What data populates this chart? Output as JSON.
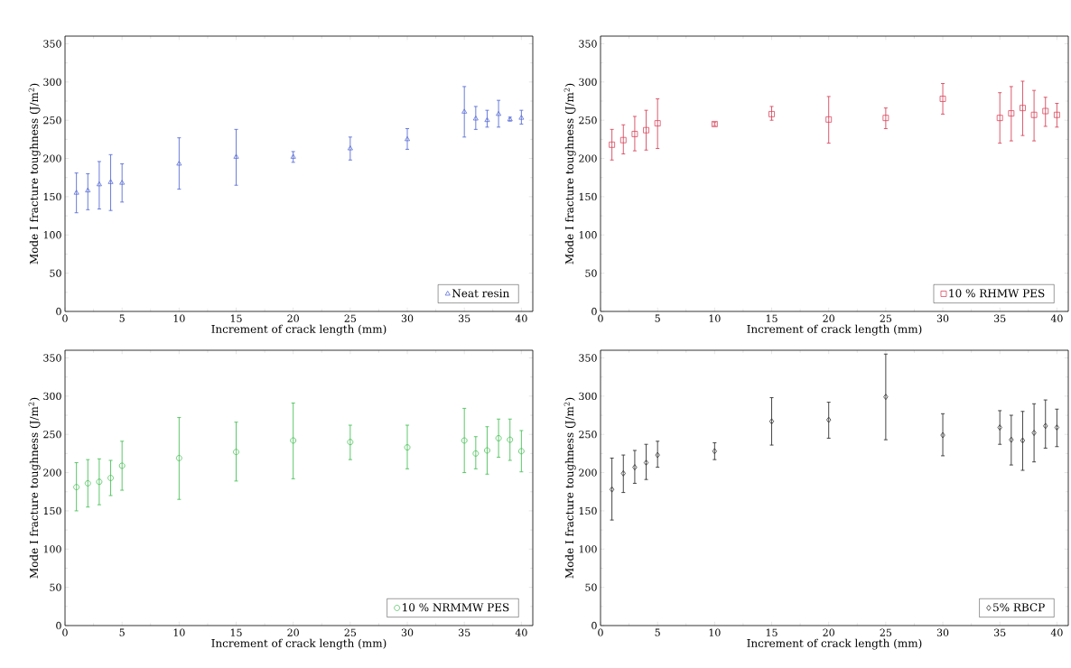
{
  "chart_data": [
    {
      "type": "scatter",
      "xlabel": "Increment of crack length (mm)",
      "ylabel": "Mode I fracture toughness (J/m$^{2}$)",
      "x": [
        1,
        2,
        3,
        4,
        5,
        10,
        15,
        20,
        25,
        30,
        35,
        36,
        37,
        38,
        39,
        40
      ],
      "xlim": [
        0,
        41
      ],
      "ylim": [
        0,
        360
      ],
      "xticks": [
        0,
        5,
        10,
        15,
        20,
        25,
        30,
        35,
        40
      ],
      "yticks": [
        0,
        50,
        100,
        150,
        200,
        250,
        300,
        350
      ],
      "legend": "bottom right",
      "marker": "triangle",
      "series": [
        {
          "name": "Neat resin",
          "color": "#5a6fd6",
          "values": [
            155,
            158,
            166,
            169,
            168,
            193,
            202,
            202,
            213,
            225,
            261,
            252,
            250,
            258,
            251,
            253
          ],
          "errors": [
            [
              129,
              181
            ],
            [
              133,
              180
            ],
            [
              134,
              196
            ],
            [
              132,
              205
            ],
            [
              143,
              193
            ],
            [
              160,
              227
            ],
            [
              165,
              238
            ],
            [
              195,
              209
            ],
            [
              198,
              228
            ],
            [
              212,
              239
            ],
            [
              228,
              294
            ],
            [
              238,
              268
            ],
            [
              241,
              263
            ],
            [
              241,
              276
            ],
            [
              249,
              254
            ],
            [
              245,
              263
            ]
          ]
        }
      ]
    },
    {
      "type": "scatter",
      "xlabel": "Increment of crack length (mm)",
      "ylabel": "Mode I fracture toughness (J/m$^{2}$)",
      "x": [
        1,
        2,
        3,
        4,
        5,
        10,
        15,
        20,
        25,
        30,
        35,
        36,
        37,
        38,
        39,
        40
      ],
      "xlim": [
        0,
        41
      ],
      "ylim": [
        0,
        360
      ],
      "xticks": [
        0,
        5,
        10,
        15,
        20,
        25,
        30,
        35,
        40
      ],
      "yticks": [
        0,
        50,
        100,
        150,
        200,
        250,
        300,
        350
      ],
      "legend": "bottom right",
      "marker": "square",
      "series": [
        {
          "name": "10 % RHMW PES",
          "color": "#d9485e",
          "values": [
            218,
            224,
            232,
            237,
            246,
            245,
            258,
            251,
            253,
            278,
            253,
            259,
            266,
            257,
            262,
            257
          ],
          "errors": [
            [
              198,
              238
            ],
            [
              206,
              244
            ],
            [
              210,
              255
            ],
            [
              211,
              263
            ],
            [
              213,
              278
            ],
            [
              243,
              247
            ],
            [
              250,
              268
            ],
            [
              220,
              281
            ],
            [
              239,
              266
            ],
            [
              258,
              298
            ],
            [
              220,
              286
            ],
            [
              223,
              294
            ],
            [
              230,
              301
            ],
            [
              223,
              289
            ],
            [
              242,
              280
            ],
            [
              241,
              272
            ]
          ]
        }
      ]
    },
    {
      "type": "scatter",
      "xlabel": "Increment of crack length (mm)",
      "ylabel": "Mode I fracture toughness (J/m$^{2}$)",
      "x": [
        1,
        2,
        3,
        4,
        5,
        10,
        15,
        20,
        25,
        30,
        35,
        36,
        37,
        38,
        39,
        40
      ],
      "xlim": [
        0,
        41
      ],
      "ylim": [
        0,
        360
      ],
      "xticks": [
        0,
        5,
        10,
        15,
        20,
        25,
        30,
        35,
        40
      ],
      "yticks": [
        0,
        50,
        100,
        150,
        200,
        250,
        300,
        350
      ],
      "legend": "bottom right",
      "marker": "circle",
      "series": [
        {
          "name": "10 % NRMMW PES",
          "color": "#4cc25a",
          "values": [
            181,
            186,
            188,
            193,
            209,
            219,
            227,
            242,
            240,
            233,
            242,
            225,
            229,
            245,
            243,
            228
          ],
          "errors": [
            [
              150,
              213
            ],
            [
              155,
              217
            ],
            [
              158,
              218
            ],
            [
              170,
              216
            ],
            [
              177,
              241
            ],
            [
              165,
              272
            ],
            [
              189,
              266
            ],
            [
              192,
              291
            ],
            [
              217,
              262
            ],
            [
              205,
              262
            ],
            [
              200,
              284
            ],
            [
              205,
              247
            ],
            [
              198,
              260
            ],
            [
              220,
              270
            ],
            [
              216,
              270
            ],
            [
              201,
              255
            ]
          ]
        }
      ]
    },
    {
      "type": "scatter",
      "xlabel": "Increment of crack length (mm)",
      "ylabel": "Mode I fracture toughness (J/m$^{2}$)",
      "x": [
        1,
        2,
        3,
        4,
        5,
        10,
        15,
        20,
        25,
        30,
        35,
        36,
        37,
        38,
        39,
        40
      ],
      "xlim": [
        0,
        41
      ],
      "ylim": [
        0,
        360
      ],
      "xticks": [
        0,
        5,
        10,
        15,
        20,
        25,
        30,
        35,
        40
      ],
      "yticks": [
        0,
        50,
        100,
        150,
        200,
        250,
        300,
        350
      ],
      "legend": "bottom right",
      "marker": "diamond",
      "series": [
        {
          "name": "5% RBCP",
          "color": "#333333",
          "values": [
            178,
            199,
            207,
            213,
            223,
            228,
            267,
            269,
            299,
            249,
            259,
            243,
            242,
            252,
            261,
            259
          ],
          "errors": [
            [
              138,
              219
            ],
            [
              174,
              223
            ],
            [
              186,
              229
            ],
            [
              191,
              237
            ],
            [
              207,
              241
            ],
            [
              217,
              239
            ],
            [
              236,
              298
            ],
            [
              245,
              292
            ],
            [
              243,
              355
            ],
            [
              222,
              277
            ],
            [
              237,
              281
            ],
            [
              210,
              275
            ],
            [
              203,
              280
            ],
            [
              214,
              290
            ],
            [
              232,
              295
            ],
            [
              234,
              283
            ]
          ]
        }
      ]
    }
  ]
}
